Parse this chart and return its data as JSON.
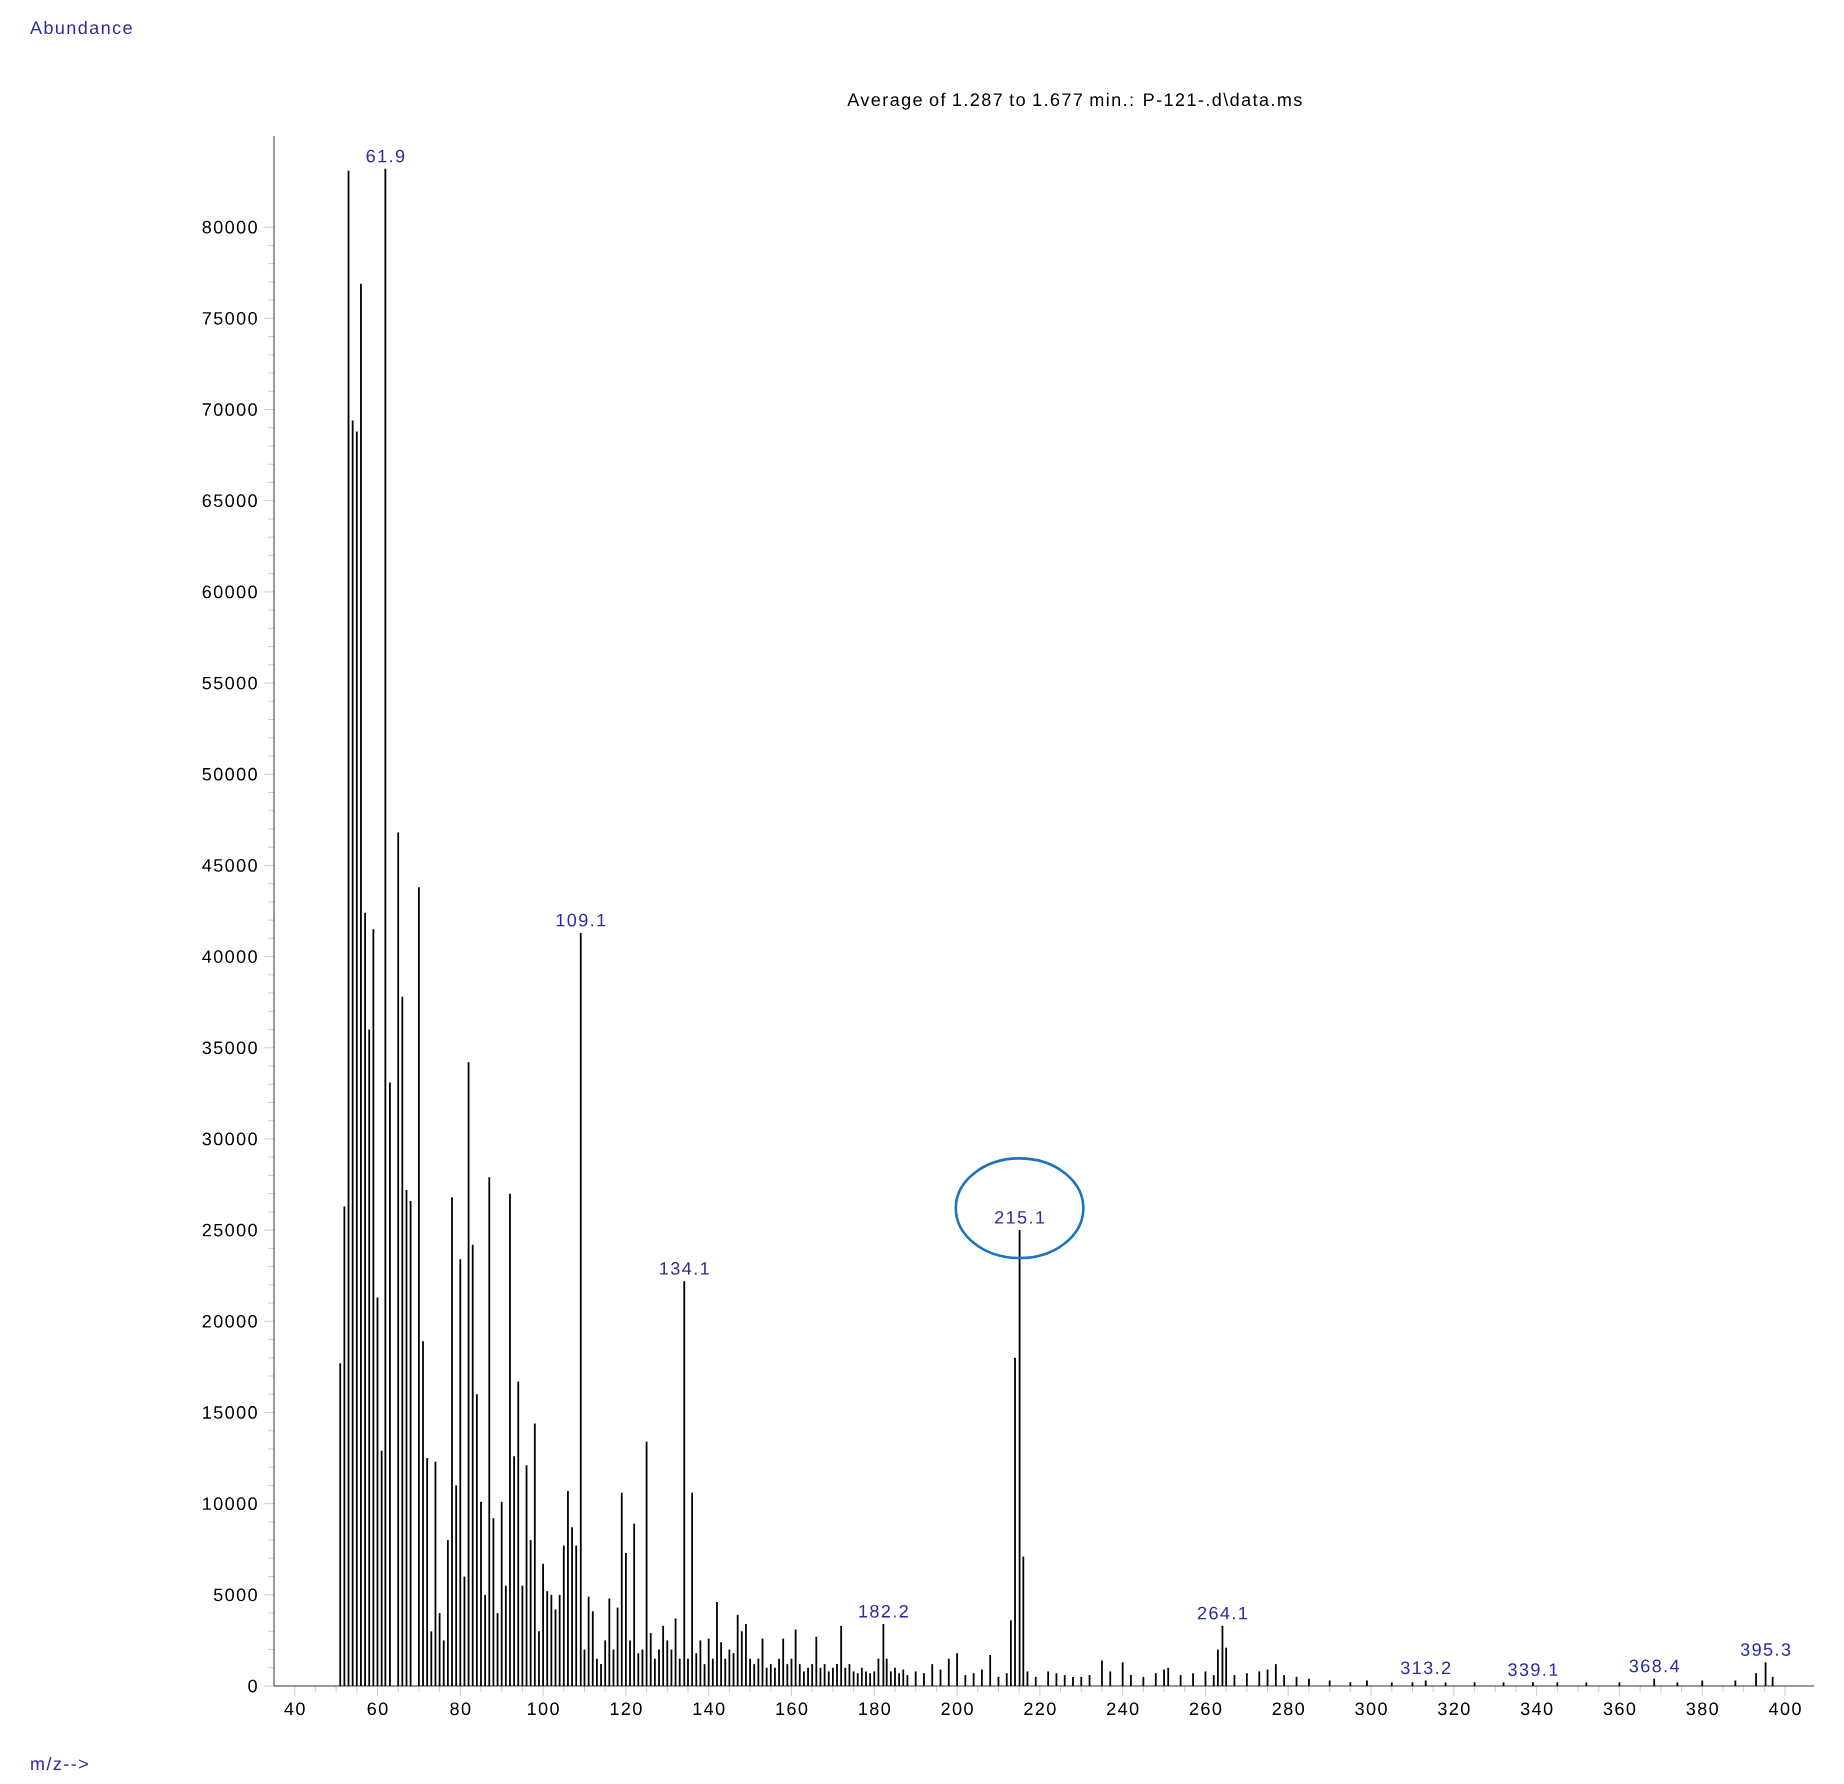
{
  "chart_data": {
    "type": "bar",
    "title": "Average of 1.287 to 1.677 min.: P-121-.d\\data.ms",
    "color": "#000000",
    "x": [
      51,
      52,
      53,
      54,
      55,
      56,
      57,
      58,
      59,
      60,
      61,
      61.9,
      63,
      65,
      66,
      67,
      68,
      70,
      71,
      72,
      73,
      74,
      75,
      76,
      77,
      78,
      79,
      80,
      81,
      82,
      83,
      84,
      85,
      86,
      87,
      88,
      89,
      90,
      91,
      92,
      93,
      94,
      95,
      96,
      97,
      98,
      99,
      100,
      101,
      102,
      103,
      104,
      105,
      106,
      107,
      108,
      109.1,
      110,
      111,
      112,
      113,
      114,
      115,
      116,
      117,
      118,
      119,
      120,
      121,
      122,
      123,
      124,
      125,
      126,
      127,
      128,
      129,
      130,
      131,
      132,
      133,
      134.1,
      135,
      136,
      137,
      138,
      139,
      140,
      141,
      142,
      143,
      144,
      145,
      146,
      147,
      148,
      149,
      150,
      151,
      152,
      153,
      154,
      155,
      156,
      157,
      158,
      159,
      160,
      161,
      162,
      163,
      164,
      165,
      166,
      167,
      168,
      169,
      170,
      171,
      172,
      173,
      174,
      175,
      176,
      177,
      178,
      179,
      180,
      181,
      182.2,
      183,
      184,
      185,
      186,
      187,
      188,
      190,
      192,
      194,
      196,
      198,
      200,
      202,
      204,
      206,
      208,
      210,
      212,
      213,
      214,
      215.1,
      216,
      217,
      219,
      222,
      224,
      226,
      228,
      230,
      232,
      235,
      237,
      240,
      242,
      245,
      248,
      250,
      251,
      254,
      257,
      260,
      262,
      263,
      264.1,
      265,
      267,
      270,
      273,
      275,
      277,
      279,
      282,
      285,
      290,
      295,
      299,
      305,
      310,
      313.2,
      318,
      325,
      332,
      339.1,
      345,
      352,
      360,
      368.4,
      374,
      380,
      388,
      393,
      395.3,
      397
    ],
    "values": [
      17700,
      26300,
      83100,
      69400,
      68800,
      76900,
      42400,
      36000,
      41500,
      21300,
      12900,
      83200,
      33100,
      46800,
      37800,
      27200,
      26600,
      43800,
      18900,
      12500,
      3000,
      12300,
      4000,
      2500,
      8000,
      26800,
      11000,
      23400,
      6000,
      34200,
      24200,
      16000,
      10100,
      5000,
      27900,
      9200,
      4000,
      10100,
      5500,
      27000,
      12600,
      16700,
      5500,
      12100,
      8000,
      14400,
      3000,
      6700,
      5200,
      5000,
      4200,
      5000,
      7700,
      10700,
      8700,
      7700,
      41300,
      2000,
      4900,
      4100,
      1500,
      1200,
      2500,
      4800,
      2000,
      4300,
      10600,
      7300,
      2500,
      8900,
      1800,
      2000,
      13400,
      2900,
      1500,
      2000,
      3300,
      2500,
      2000,
      3700,
      1500,
      22200,
      1500,
      10600,
      1800,
      2500,
      1200,
      2600,
      1500,
      4600,
      2400,
      1500,
      2000,
      1800,
      3900,
      3000,
      3400,
      1500,
      1200,
      1500,
      2600,
      1000,
      1200,
      1000,
      1500,
      2600,
      1200,
      1500,
      3100,
      1200,
      800,
      1000,
      1200,
      2700,
      1000,
      1200,
      800,
      1000,
      1200,
      3300,
      1000,
      1200,
      800,
      700,
      1000,
      800,
      700,
      800,
      1500,
      3400,
      1500,
      800,
      1000,
      700,
      900,
      600,
      800,
      700,
      1200,
      900,
      1500,
      1800,
      600,
      700,
      900,
      1700,
      500,
      700,
      3600,
      18000,
      25000,
      7100,
      800,
      500,
      800,
      700,
      600,
      500,
      500,
      600,
      1400,
      800,
      1300,
      600,
      500,
      700,
      900,
      1000,
      600,
      700,
      800,
      600,
      2000,
      3300,
      2100,
      600,
      700,
      800,
      900,
      1200,
      600,
      500,
      400,
      300,
      200,
      300,
      200,
      200,
      300,
      200,
      200,
      200,
      200,
      200,
      200,
      200,
      400,
      200,
      300,
      300,
      700,
      1300,
      500
    ],
    "xlim": [
      35,
      407
    ],
    "ylim": [
      0,
      85000
    ],
    "xticks": [
      40,
      60,
      80,
      100,
      120,
      140,
      160,
      180,
      200,
      220,
      240,
      260,
      280,
      300,
      320,
      340,
      360,
      380,
      400
    ],
    "yticks": [
      0,
      5000,
      10000,
      15000,
      20000,
      25000,
      30000,
      35000,
      40000,
      45000,
      50000,
      55000,
      60000,
      65000,
      70000,
      75000,
      80000
    ],
    "annotations": [
      "Abundance",
      "m/z-->",
      {
        "text": "61.9",
        "x": 61.9,
        "y": 83200
      },
      {
        "text": "109.1",
        "x": 109.1,
        "y": 41300
      },
      {
        "text": "134.1",
        "x": 134.1,
        "y": 22200
      },
      {
        "text": "182.2",
        "x": 182.2,
        "y": 3400
      },
      {
        "text": "215.1",
        "x": 215.1,
        "y": 25000
      },
      {
        "text": "264.1",
        "x": 264.1,
        "y": 3300
      },
      {
        "text": "313.2",
        "x": 313.2,
        "y": 300
      },
      {
        "text": "339.1",
        "x": 339.1,
        "y": 200
      },
      {
        "text": "368.4",
        "x": 368.4,
        "y": 400
      },
      {
        "text": "395.3",
        "x": 395.3,
        "y": 1300
      }
    ]
  }
}
